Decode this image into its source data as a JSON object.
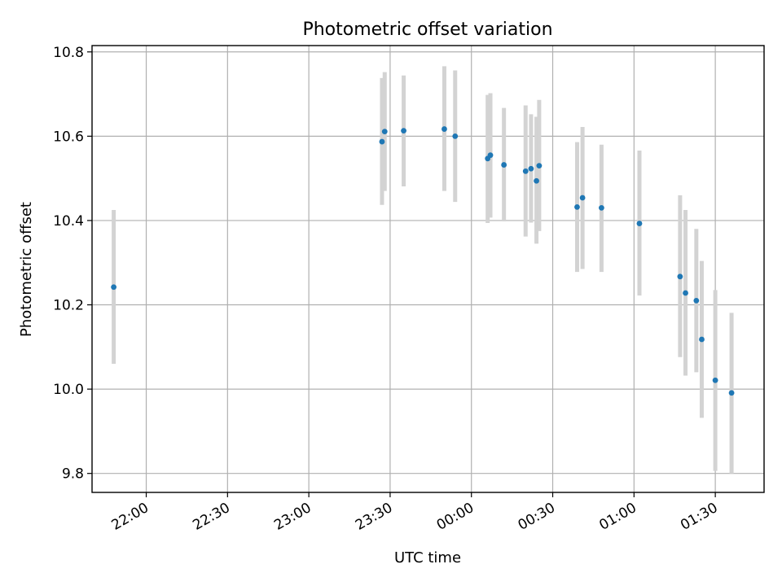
{
  "chart_data": {
    "type": "scatter",
    "title": "Photometric offset variation",
    "xlabel": "UTC time",
    "ylabel": "Photometric offset",
    "x_tick_labels": [
      "22:00",
      "22:30",
      "23:00",
      "23:30",
      "00:00",
      "00:30",
      "01:00",
      "01:30"
    ],
    "y_ticks": [
      9.8,
      10.0,
      10.2,
      10.4,
      10.6,
      10.8
    ],
    "y_tick_labels": [
      "9.8",
      "10.0",
      "10.2",
      "10.4",
      "10.6",
      "10.8"
    ],
    "xlim": [
      "21:40",
      "01:48"
    ],
    "ylim": [
      9.755,
      10.815
    ],
    "grid": true,
    "marker_color": "#1f77b4",
    "errorbar_color": "#d3d3d3",
    "points": [
      {
        "t": "21:48",
        "y": 10.242,
        "lo": 10.06,
        "hi": 10.425
      },
      {
        "t": "23:27",
        "y": 10.587,
        "lo": 10.437,
        "hi": 10.738
      },
      {
        "t": "23:28",
        "y": 10.611,
        "lo": 10.47,
        "hi": 10.752
      },
      {
        "t": "23:35",
        "y": 10.613,
        "lo": 10.481,
        "hi": 10.744
      },
      {
        "t": "23:50",
        "y": 10.617,
        "lo": 10.47,
        "hi": 10.766
      },
      {
        "t": "23:54",
        "y": 10.6,
        "lo": 10.444,
        "hi": 10.756
      },
      {
        "t": "00:06",
        "y": 10.547,
        "lo": 10.394,
        "hi": 10.698
      },
      {
        "t": "00:07",
        "y": 10.555,
        "lo": 10.407,
        "hi": 10.702
      },
      {
        "t": "00:12",
        "y": 10.532,
        "lo": 10.398,
        "hi": 10.667
      },
      {
        "t": "00:20",
        "y": 10.517,
        "lo": 10.362,
        "hi": 10.673
      },
      {
        "t": "00:22",
        "y": 10.523,
        "lo": 10.395,
        "hi": 10.652
      },
      {
        "t": "00:24",
        "y": 10.494,
        "lo": 10.345,
        "hi": 10.646
      },
      {
        "t": "00:25",
        "y": 10.53,
        "lo": 10.375,
        "hi": 10.686
      },
      {
        "t": "00:39",
        "y": 10.432,
        "lo": 10.278,
        "hi": 10.586
      },
      {
        "t": "00:41",
        "y": 10.454,
        "lo": 10.285,
        "hi": 10.622
      },
      {
        "t": "00:48",
        "y": 10.43,
        "lo": 10.278,
        "hi": 10.58
      },
      {
        "t": "01:02",
        "y": 10.393,
        "lo": 10.222,
        "hi": 10.566
      },
      {
        "t": "01:17",
        "y": 10.267,
        "lo": 10.076,
        "hi": 10.46
      },
      {
        "t": "01:19",
        "y": 10.228,
        "lo": 10.032,
        "hi": 10.425
      },
      {
        "t": "01:23",
        "y": 10.21,
        "lo": 10.04,
        "hi": 10.38
      },
      {
        "t": "01:25",
        "y": 10.118,
        "lo": 9.932,
        "hi": 10.304
      },
      {
        "t": "01:30",
        "y": 10.021,
        "lo": 9.806,
        "hi": 10.235
      },
      {
        "t": "01:36",
        "y": 9.991,
        "lo": 9.8,
        "hi": 10.181
      }
    ]
  }
}
